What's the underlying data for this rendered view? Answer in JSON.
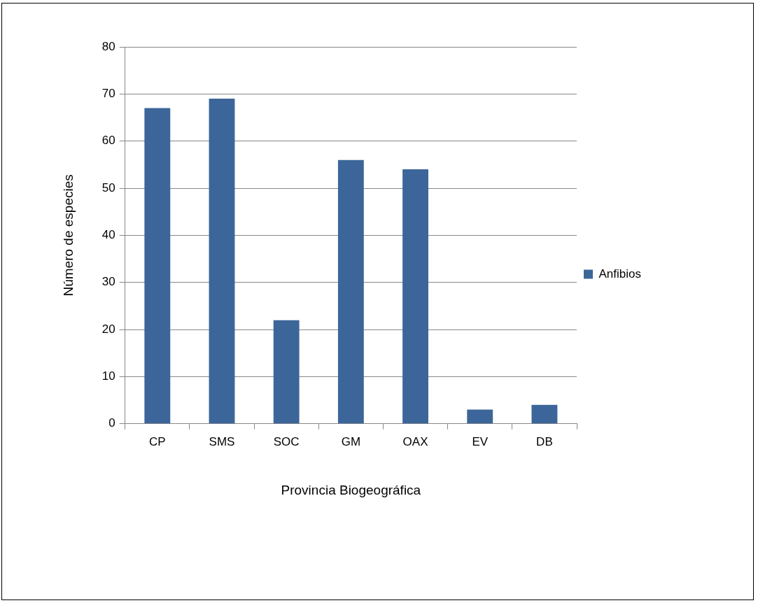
{
  "chart_data": {
    "type": "bar",
    "xlabel": "Provincia Biogeográfica",
    "ylabel": "Número de especies",
    "categories": [
      "CP",
      "SMS",
      "SOC",
      "GM",
      "OAX",
      "EV",
      "DB"
    ],
    "series": [
      {
        "name": "Anfibios",
        "color": "#3c6699",
        "values": [
          67,
          69,
          22,
          56,
          54,
          3,
          4
        ]
      }
    ],
    "ylim": [
      0,
      80
    ],
    "yticks": [
      0,
      10,
      20,
      30,
      40,
      50,
      60,
      70,
      80
    ],
    "grid": "y",
    "legend": "right"
  }
}
